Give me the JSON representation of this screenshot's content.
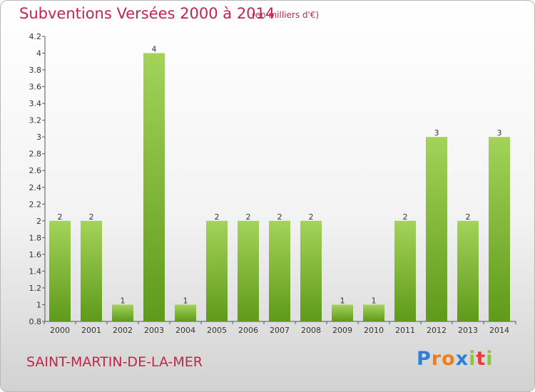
{
  "header": {
    "title": "Subventions Versées 2000 à 2014",
    "subtitle": "(en milliers d'€)"
  },
  "footer": {
    "commune": "SAINT-MARTIN-DE-LA-MER",
    "logo_text": "Proxiti"
  },
  "colors": {
    "bar_light": "#a3d35a",
    "bar_dark": "#5f9a1a",
    "title": "#c3244c"
  },
  "chart_data": {
    "type": "bar",
    "title": "Subventions Versées 2000 à 2014",
    "subtitle": "(en milliers d'€)",
    "categories": [
      "2000",
      "2001",
      "2002",
      "2003",
      "2004",
      "2005",
      "2006",
      "2007",
      "2008",
      "2009",
      "2010",
      "2011",
      "2012",
      "2013",
      "2014"
    ],
    "values": [
      2,
      2,
      1,
      4,
      1,
      2,
      2,
      2,
      2,
      1,
      1,
      2,
      3,
      2,
      3
    ],
    "ylim": [
      0.8,
      4.2
    ],
    "yticks": [
      "0.8",
      "1",
      "1.2",
      "1.4",
      "1.6",
      "1.8",
      "2",
      "2.2",
      "2.4",
      "2.6",
      "2.8",
      "3",
      "3.2",
      "3.4",
      "3.6",
      "3.8",
      "4",
      "4.2"
    ],
    "grid": false,
    "legend": "none"
  }
}
